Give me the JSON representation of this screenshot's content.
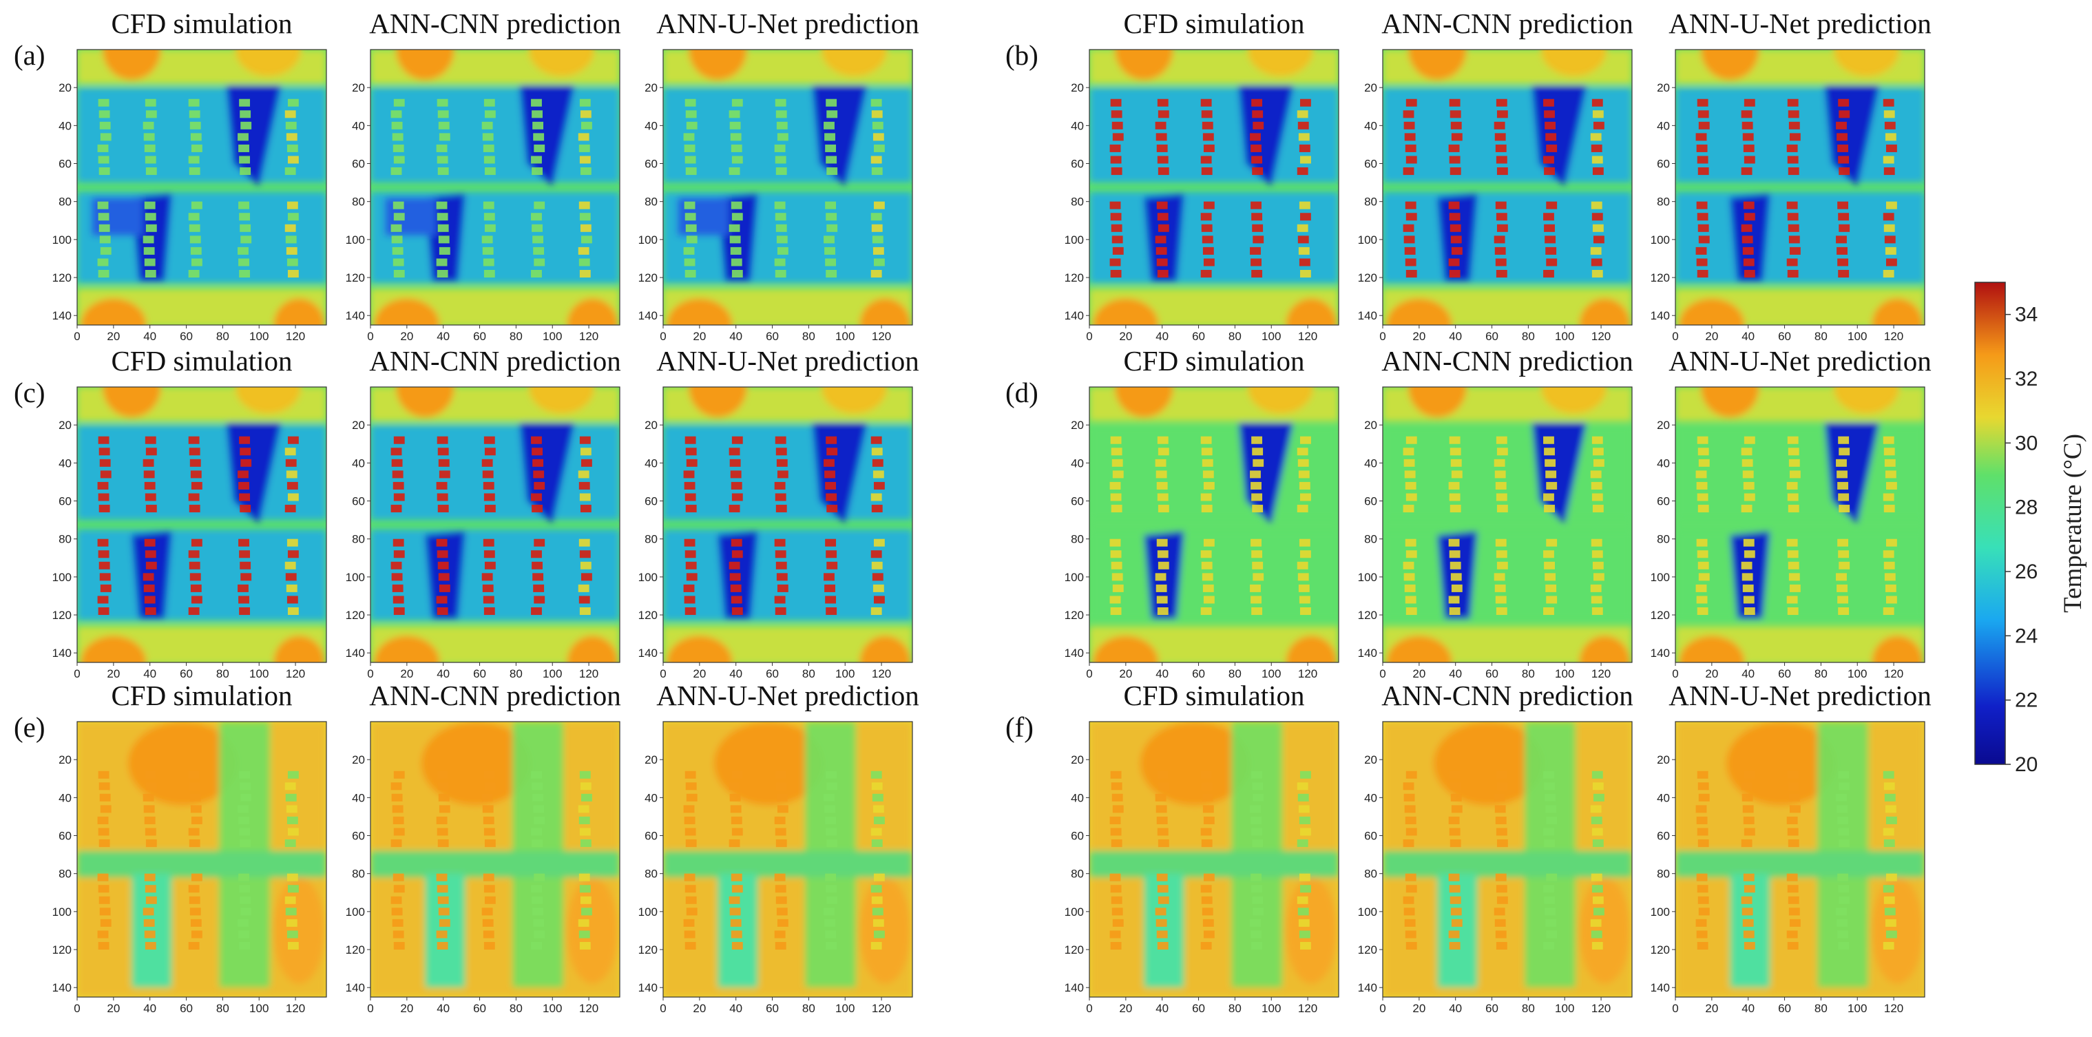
{
  "colors": {
    "cold": "#1020c8",
    "cool": "#1aa8f0",
    "mild": "#38e0b8",
    "neutral": "#5fe06a",
    "warm": "#e8d830",
    "hot": "#f59a18",
    "hottest": "#d81e10"
  },
  "colorbar": {
    "label": "Temperature (°C)",
    "min": 20,
    "max": 35,
    "ticks": [
      "20",
      "22",
      "24",
      "26",
      "28",
      "30",
      "32",
      "34"
    ],
    "tick_values": [
      20,
      22,
      24,
      26,
      28,
      30,
      32,
      34
    ]
  },
  "chart_data": {
    "type": "heatmap",
    "description_units": "°C",
    "x_ticks": [
      "0",
      "20",
      "40",
      "60",
      "80",
      "100",
      "120"
    ],
    "x_tick_values": [
      0,
      20,
      40,
      60,
      80,
      100,
      120
    ],
    "y_ticks": [
      "20",
      "40",
      "60",
      "80",
      "100",
      "120",
      "140"
    ],
    "y_tick_values": [
      20,
      40,
      60,
      80,
      100,
      120,
      140
    ],
    "xlim": [
      0,
      137
    ],
    "ylim": [
      0,
      145
    ],
    "panels": [
      {
        "label": "(a)",
        "scenario": "a",
        "titles": [
          "CFD simulation",
          "ANN-CNN prediction",
          "ANN-U-Net prediction"
        ]
      },
      {
        "label": "(b)",
        "scenario": "b",
        "titles": [
          "CFD simulation",
          "ANN-CNN prediction",
          "ANN-U-Net prediction"
        ]
      },
      {
        "label": "(c)",
        "scenario": "c",
        "titles": [
          "CFD simulation",
          "ANN-CNN prediction",
          "ANN-U-Net prediction"
        ]
      },
      {
        "label": "(d)",
        "scenario": "d",
        "titles": [
          "CFD simulation",
          "ANN-CNN prediction",
          "ANN-U-Net prediction"
        ]
      },
      {
        "label": "(e)",
        "scenario": "e",
        "titles": [
          "CFD simulation",
          "ANN-CNN prediction",
          "ANN-U-Net prediction"
        ]
      },
      {
        "label": "(f)",
        "scenario": "f",
        "titles": [
          "CFD simulation",
          "ANN-CNN prediction",
          "ANN-U-Net prediction"
        ]
      }
    ]
  }
}
